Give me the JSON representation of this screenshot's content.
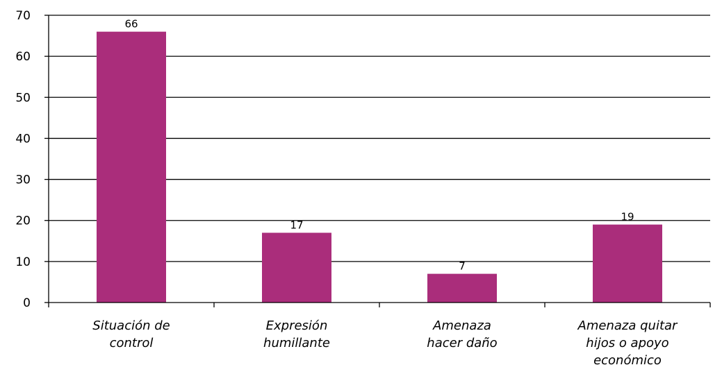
{
  "chart_data": {
    "type": "bar",
    "title": "",
    "xlabel": "",
    "ylabel": "",
    "categories": [
      [
        "Situación de",
        "control"
      ],
      [
        "Expresión",
        "humillante"
      ],
      [
        "Amenaza",
        "hacer daño"
      ],
      [
        "Amenaza quitar",
        "hijos o apoyo",
        "económico"
      ]
    ],
    "values": [
      66,
      17,
      7,
      19
    ],
    "data_labels": [
      "66",
      "17",
      "7",
      "19"
    ],
    "ylim": [
      0,
      70
    ],
    "yticks": [
      "0",
      "10",
      "20",
      "30",
      "40",
      "50",
      "60",
      "70"
    ],
    "grid": true,
    "legend": "none",
    "bar_color": "#AA2D7B",
    "grid_color": "#000000"
  }
}
